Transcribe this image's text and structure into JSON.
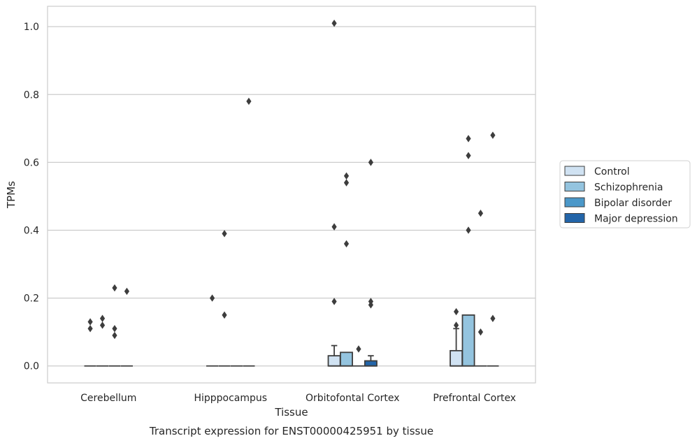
{
  "chart_data": {
    "type": "box",
    "title": "Transcript expression for ENST00000425951 by tissue",
    "xlabel": "Tissue",
    "ylabel": "TPMs",
    "ylim": [
      -0.05,
      1.06
    ],
    "yticks": [
      0.0,
      0.2,
      0.4,
      0.6,
      0.8,
      1.0
    ],
    "ytick_labels": [
      "0.0",
      "0.2",
      "0.4",
      "0.6",
      "0.8",
      "1.0"
    ],
    "categories": [
      "Cerebellum",
      "Hipppocampus",
      "Orbitofontal Cortex",
      "Prefrontal Cortex"
    ],
    "grid": true,
    "legend_position": "right",
    "series": [
      {
        "name": "Control",
        "color": "#d0e2f2"
      },
      {
        "name": "Schizophrenia",
        "color": "#94c4df"
      },
      {
        "name": "Bipolar disorder",
        "color": "#4b98c9"
      },
      {
        "name": "Major depression",
        "color": "#2365a9"
      }
    ],
    "boxes": [
      [
        {
          "q1": 0,
          "median": 0,
          "q3": 0,
          "whisker_low": 0,
          "whisker_high": 0,
          "outliers": [
            0.11,
            0.13
          ]
        },
        {
          "q1": 0,
          "median": 0,
          "q3": 0,
          "whisker_low": 0,
          "whisker_high": 0,
          "outliers": [
            0.12,
            0.14
          ]
        },
        {
          "q1": 0,
          "median": 0,
          "q3": 0,
          "whisker_low": 0,
          "whisker_high": 0,
          "outliers": [
            0.09,
            0.11,
            0.23
          ]
        },
        {
          "q1": 0,
          "median": 0,
          "q3": 0,
          "whisker_low": 0,
          "whisker_high": 0,
          "outliers": [
            0.22
          ]
        }
      ],
      [
        {
          "q1": 0,
          "median": 0,
          "q3": 0,
          "whisker_low": 0,
          "whisker_high": 0,
          "outliers": [
            0.2
          ]
        },
        {
          "q1": 0,
          "median": 0,
          "q3": 0,
          "whisker_low": 0,
          "whisker_high": 0,
          "outliers": [
            0.15,
            0.39
          ]
        },
        {
          "q1": 0,
          "median": 0,
          "q3": 0,
          "whisker_low": 0,
          "whisker_high": 0,
          "outliers": []
        },
        {
          "q1": 0,
          "median": 0,
          "q3": 0,
          "whisker_low": 0,
          "whisker_high": 0,
          "outliers": [
            0.78
          ]
        }
      ],
      [
        {
          "q1": 0,
          "median": 0,
          "q3": 0.03,
          "whisker_low": 0,
          "whisker_high": 0.06,
          "outliers": [
            0.19,
            0.41,
            1.01
          ]
        },
        {
          "q1": 0,
          "median": 0,
          "q3": 0.04,
          "whisker_low": 0,
          "whisker_high": 0.04,
          "outliers": [
            0.36,
            0.54,
            0.56
          ]
        },
        {
          "q1": 0,
          "median": 0,
          "q3": 0,
          "whisker_low": 0,
          "whisker_high": 0,
          "outliers": [
            0.05
          ]
        },
        {
          "q1": 0,
          "median": 0,
          "q3": 0.015,
          "whisker_low": 0,
          "whisker_high": 0.03,
          "outliers": [
            0.18,
            0.19,
            0.6
          ]
        }
      ],
      [
        {
          "q1": 0,
          "median": 0,
          "q3": 0.045,
          "whisker_low": 0,
          "whisker_high": 0.11,
          "outliers": [
            0.12,
            0.16
          ]
        },
        {
          "q1": 0,
          "median": 0,
          "q3": 0.15,
          "whisker_low": 0,
          "whisker_high": 0.15,
          "outliers": [
            0.4,
            0.62,
            0.67
          ]
        },
        {
          "q1": 0,
          "median": 0,
          "q3": 0,
          "whisker_low": 0,
          "whisker_high": 0,
          "outliers": [
            0.1,
            0.45
          ]
        },
        {
          "q1": 0,
          "median": 0,
          "q3": 0,
          "whisker_low": 0,
          "whisker_high": 0,
          "outliers": [
            0.14,
            0.68
          ]
        }
      ]
    ]
  }
}
